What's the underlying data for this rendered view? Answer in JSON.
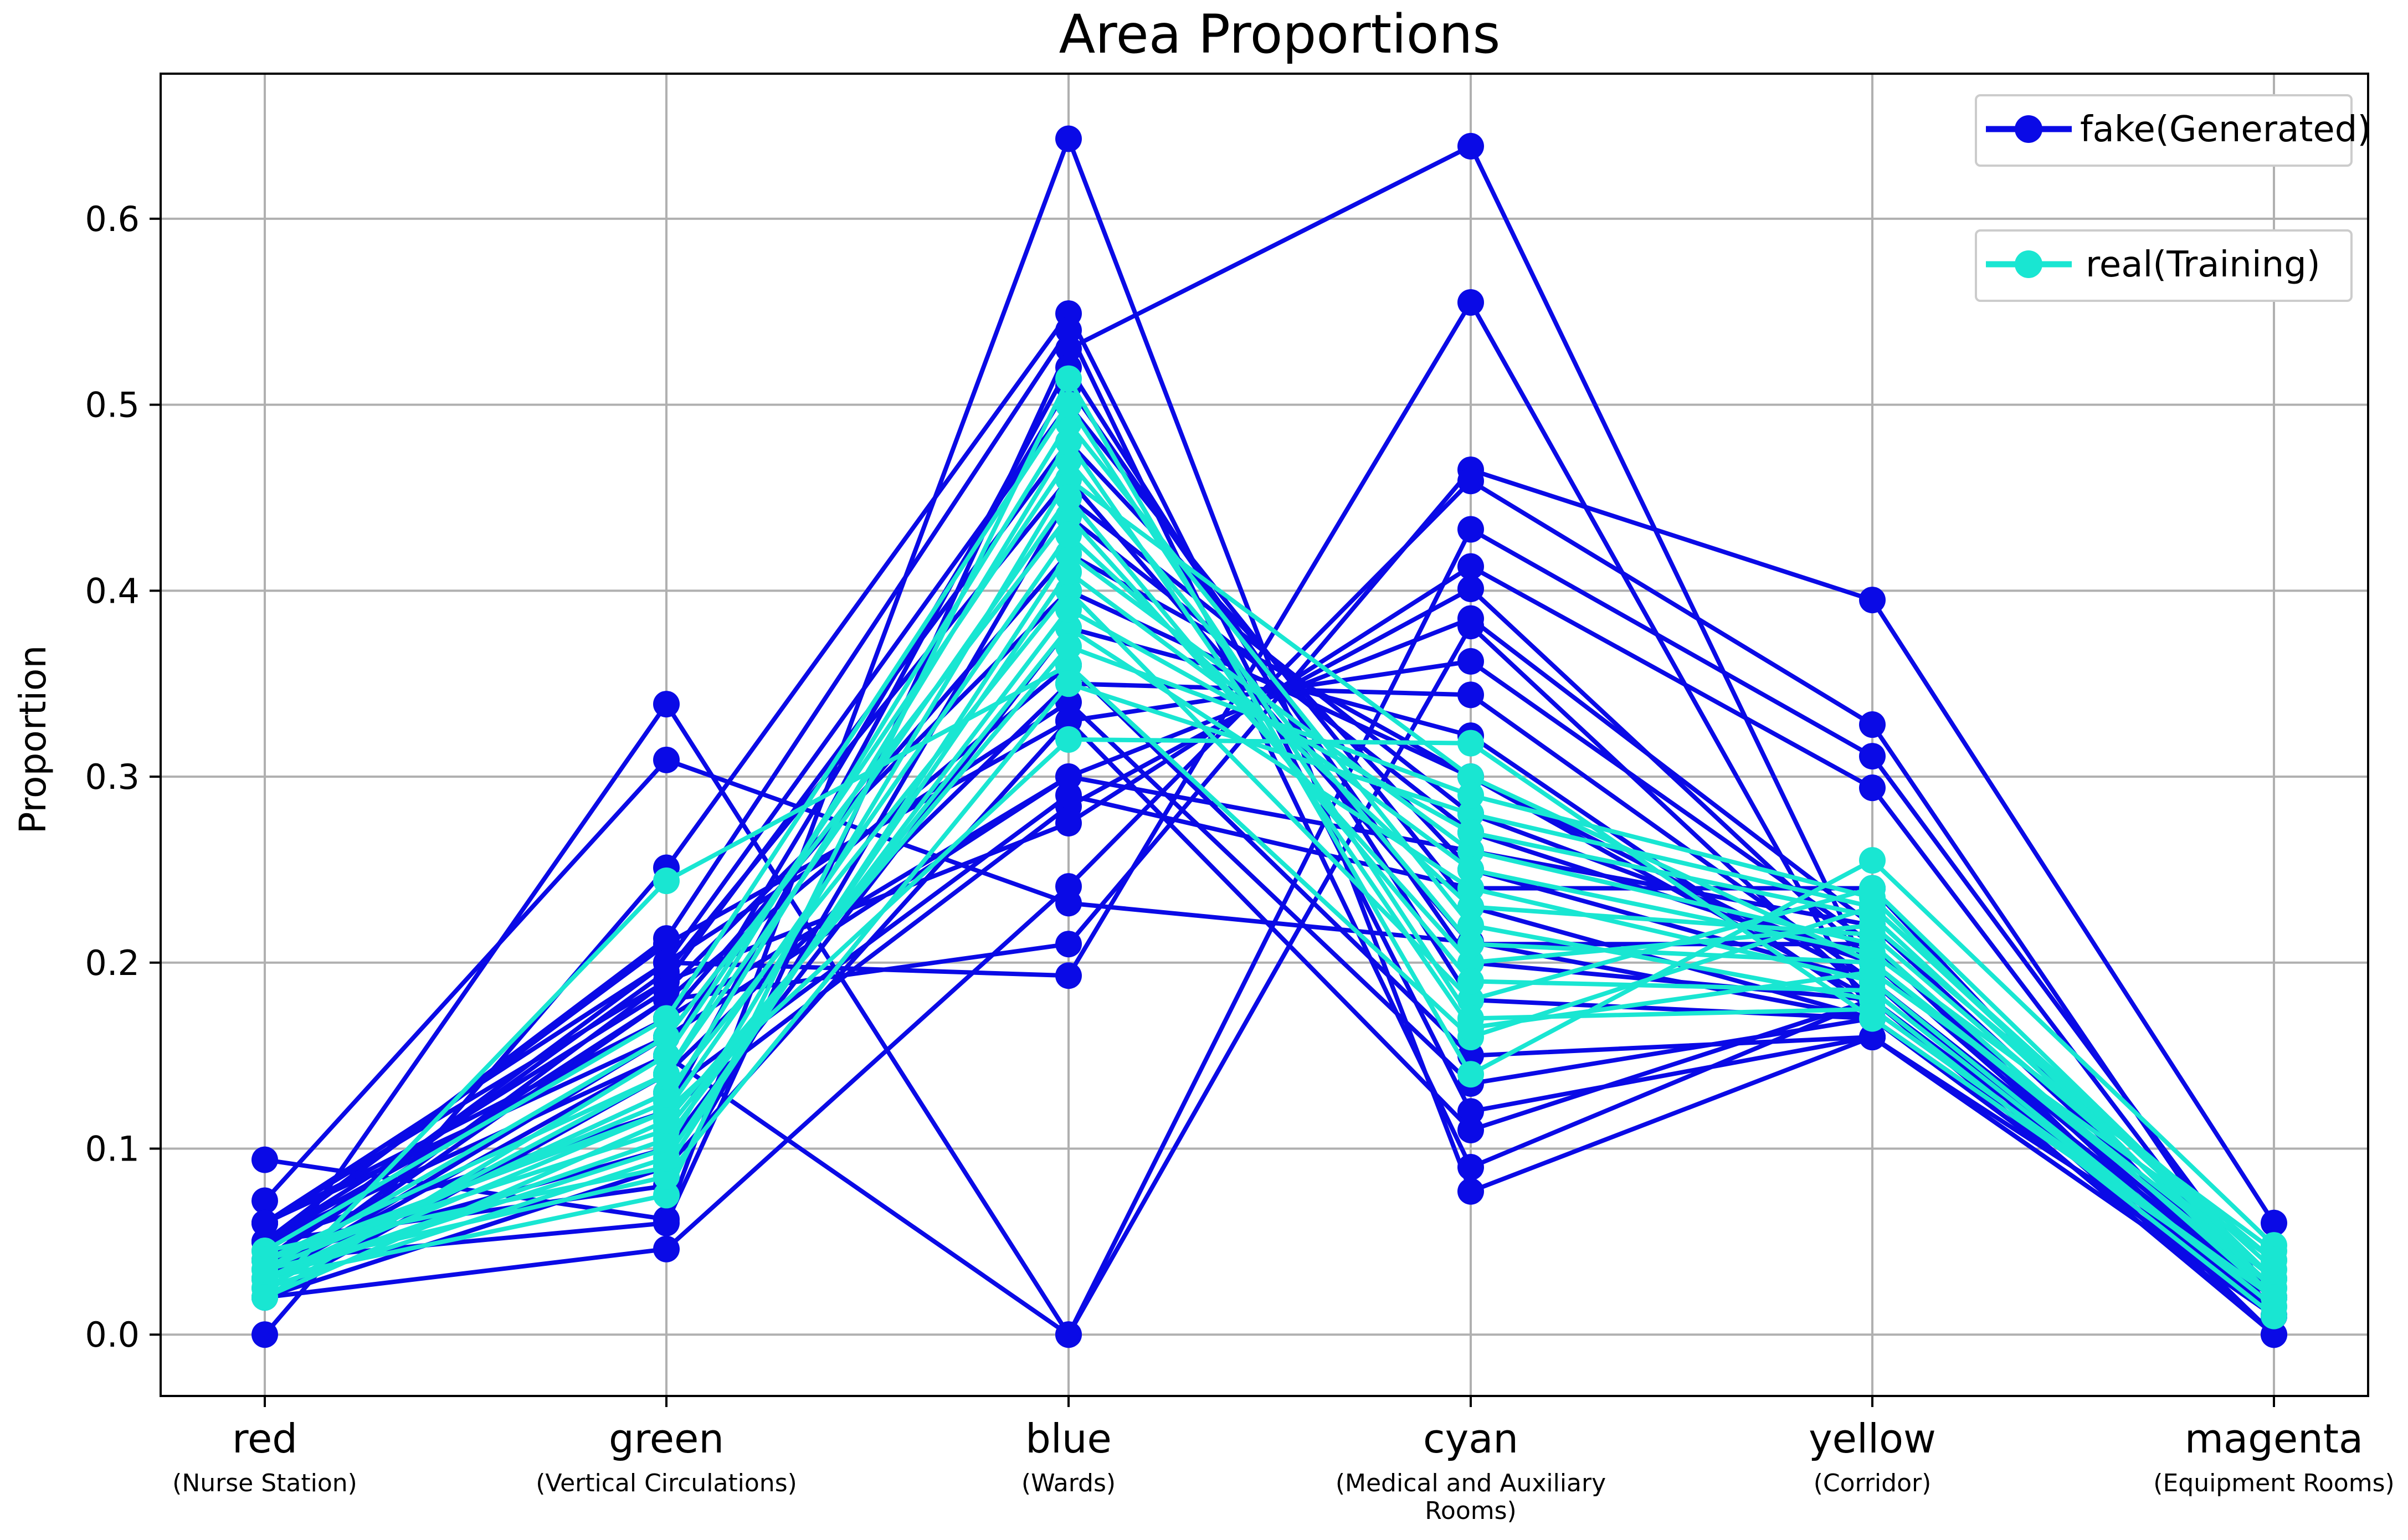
{
  "colors": {
    "fake": "#0a0ae6",
    "real": "#19e6d2",
    "grid": "#b0b0b0",
    "axis": "#000000"
  },
  "chart_data": {
    "type": "line",
    "title": "Area Proportions",
    "xlabel": "",
    "ylabel": "Proportion",
    "ylim": [
      -0.033,
      0.678
    ],
    "yticks": [
      "0.0",
      "0.1",
      "0.2",
      "0.3",
      "0.4",
      "0.5",
      "0.6"
    ],
    "grid": true,
    "legend_position": "top-right",
    "categories": [
      {
        "label": "red",
        "sub": [
          "(Nurse Station)"
        ]
      },
      {
        "label": "green",
        "sub": [
          "(Vertical Circulations)"
        ]
      },
      {
        "label": "blue",
        "sub": [
          "(Wards)"
        ]
      },
      {
        "label": "cyan",
        "sub": [
          "(Medical and Auxiliary",
          "Rooms)"
        ]
      },
      {
        "label": "yellow",
        "sub": [
          "(Corridor)"
        ]
      },
      {
        "label": "magenta",
        "sub": [
          "(Equipment Rooms)"
        ]
      }
    ],
    "series": [
      {
        "name": "fake(Generated)",
        "lines": [
          [
            0.094,
            0.062,
            0.643,
            0.077,
            0.16,
            0.01
          ],
          [
            0.03,
            0.339,
            0.0,
            0.381,
            0.18,
            0.02
          ],
          [
            0.072,
            0.309,
            0.232,
            0.211,
            0.17,
            0.02
          ],
          [
            0.0,
            0.251,
            0.549,
            0.12,
            0.16,
            0.01
          ],
          [
            0.05,
            0.213,
            0.54,
            0.09,
            0.18,
            0.01
          ],
          [
            0.04,
            0.06,
            0.53,
            0.639,
            0.19,
            0.0
          ],
          [
            0.06,
            0.2,
            0.193,
            0.555,
            0.17,
            0.01
          ],
          [
            0.03,
            0.18,
            0.21,
            0.465,
            0.395,
            0.06
          ],
          [
            0.02,
            0.046,
            0.241,
            0.459,
            0.328,
            0.01
          ],
          [
            0.05,
            0.15,
            0.0,
            0.433,
            0.311,
            0.02
          ],
          [
            0.06,
            0.19,
            0.275,
            0.413,
            0.294,
            0.01
          ],
          [
            0.04,
            0.12,
            0.284,
            0.401,
            0.2,
            0.01
          ],
          [
            0.03,
            0.16,
            0.3,
            0.385,
            0.22,
            0.02
          ],
          [
            0.05,
            0.21,
            0.33,
            0.362,
            0.21,
            0.0
          ],
          [
            0.02,
            0.14,
            0.35,
            0.344,
            0.19,
            0.01
          ],
          [
            0.04,
            0.1,
            0.38,
            0.322,
            0.175,
            0.02
          ],
          [
            0.06,
            0.17,
            0.42,
            0.3,
            0.18,
            0.01
          ],
          [
            0.05,
            0.08,
            0.45,
            0.28,
            0.2,
            0.01
          ],
          [
            0.03,
            0.19,
            0.48,
            0.25,
            0.19,
            0.02
          ],
          [
            0.04,
            0.2,
            0.5,
            0.23,
            0.17,
            0.01
          ],
          [
            0.03,
            0.15,
            0.51,
            0.2,
            0.18,
            0.0
          ],
          [
            0.05,
            0.12,
            0.52,
            0.18,
            0.17,
            0.01
          ],
          [
            0.04,
            0.18,
            0.36,
            0.15,
            0.16,
            0.02
          ],
          [
            0.06,
            0.2,
            0.34,
            0.135,
            0.17,
            0.01
          ],
          [
            0.02,
            0.09,
            0.33,
            0.11,
            0.18,
            0.01
          ],
          [
            0.05,
            0.17,
            0.3,
            0.26,
            0.22,
            0.02
          ],
          [
            0.03,
            0.13,
            0.29,
            0.24,
            0.24,
            0.01
          ],
          [
            0.04,
            0.195,
            0.46,
            0.21,
            0.21,
            0.01
          ],
          [
            0.06,
            0.16,
            0.44,
            0.27,
            0.2,
            0.02
          ],
          [
            0.05,
            0.185,
            0.4,
            0.3,
            0.19,
            0.01
          ]
        ]
      },
      {
        "name": "real(Training)",
        "lines": [
          [
            0.02,
            0.244,
            0.36,
            0.16,
            0.23,
            0.03
          ],
          [
            0.03,
            0.075,
            0.514,
            0.14,
            0.255,
            0.048
          ],
          [
            0.04,
            0.12,
            0.32,
            0.318,
            0.17,
            0.02
          ],
          [
            0.03,
            0.1,
            0.46,
            0.3,
            0.2,
            0.03
          ],
          [
            0.025,
            0.14,
            0.49,
            0.22,
            0.18,
            0.01
          ],
          [
            0.035,
            0.16,
            0.44,
            0.2,
            0.22,
            0.04
          ],
          [
            0.045,
            0.09,
            0.42,
            0.26,
            0.21,
            0.02
          ],
          [
            0.03,
            0.13,
            0.4,
            0.18,
            0.24,
            0.03
          ],
          [
            0.04,
            0.11,
            0.38,
            0.24,
            0.19,
            0.015
          ],
          [
            0.02,
            0.15,
            0.47,
            0.21,
            0.2,
            0.025
          ],
          [
            0.035,
            0.085,
            0.35,
            0.28,
            0.23,
            0.035
          ],
          [
            0.045,
            0.17,
            0.5,
            0.17,
            0.175,
            0.02
          ],
          [
            0.03,
            0.12,
            0.43,
            0.23,
            0.215,
            0.03
          ],
          [
            0.025,
            0.095,
            0.41,
            0.25,
            0.205,
            0.045
          ],
          [
            0.04,
            0.14,
            0.45,
            0.19,
            0.185,
            0.015
          ],
          [
            0.03,
            0.105,
            0.39,
            0.27,
            0.225,
            0.025
          ],
          [
            0.035,
            0.125,
            0.48,
            0.165,
            0.195,
            0.04
          ],
          [
            0.02,
            0.115,
            0.37,
            0.29,
            0.235,
            0.02
          ]
        ]
      }
    ]
  }
}
